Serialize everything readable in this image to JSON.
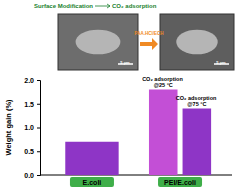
{
  "chart_data": {
    "type": "bar",
    "y_label": "Weight gain (%)",
    "categories": [
      "E.coli",
      "PEI/E.coli"
    ],
    "series": [
      {
        "name": "CO₂ adsorption @25 °C",
        "color": "#c34fd6",
        "values": [
          null,
          1.8
        ]
      },
      {
        "name": "CO₂ adsorption @75 °C",
        "color": "#8e35c6",
        "values": [
          0.7,
          1.4
        ]
      }
    ],
    "ylim": [
      0,
      2.0
    ],
    "yticks": [
      {
        "value": 0,
        "label": "0.0"
      },
      {
        "value": 0.5,
        "label": "0.5"
      },
      {
        "value": 1.0,
        "label": "1.0"
      },
      {
        "value": 1.5,
        "label": "1.5"
      },
      {
        "value": 2.0,
        "label": "2.0"
      }
    ],
    "annotations": [
      "Surface Modification",
      "CO₂ adsorption",
      "PAA.HCl/ECH",
      "5 μm",
      "5 μm"
    ]
  }
}
